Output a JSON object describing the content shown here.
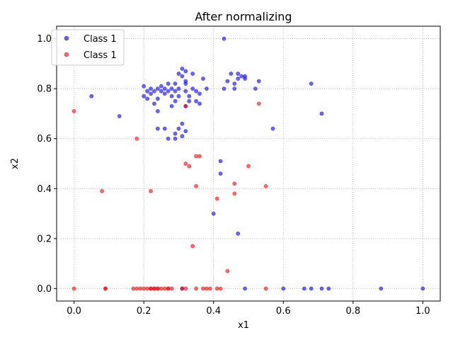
{
  "chart_data": {
    "type": "scatter",
    "title": "After normalizing",
    "xlabel": "x1",
    "ylabel": "x2",
    "xlim": [
      -0.05,
      1.05
    ],
    "ylim": [
      -0.05,
      1.05
    ],
    "xticks": [
      "0.0",
      "0.2",
      "0.4",
      "0.6",
      "0.8",
      "1.0"
    ],
    "yticks": [
      "0.0",
      "0.2",
      "0.4",
      "0.6",
      "0.8",
      "1.0"
    ],
    "grid": true,
    "legend_position": "top-left",
    "series": [
      {
        "name": "Class 1",
        "color": "#0000ff",
        "points": [
          [
            0.05,
            0.77
          ],
          [
            0.13,
            0.69
          ],
          [
            0.2,
            0.77
          ],
          [
            0.2,
            0.81
          ],
          [
            0.21,
            0.79
          ],
          [
            0.21,
            0.76
          ],
          [
            0.22,
            0.8
          ],
          [
            0.22,
            0.78
          ],
          [
            0.23,
            0.74
          ],
          [
            0.23,
            0.79
          ],
          [
            0.24,
            0.8
          ],
          [
            0.24,
            0.76
          ],
          [
            0.25,
            0.81
          ],
          [
            0.25,
            0.79
          ],
          [
            0.26,
            0.8
          ],
          [
            0.26,
            0.78
          ],
          [
            0.27,
            0.82
          ],
          [
            0.27,
            0.79
          ],
          [
            0.28,
            0.8
          ],
          [
            0.28,
            0.77
          ],
          [
            0.28,
            0.73
          ],
          [
            0.29,
            0.82
          ],
          [
            0.29,
            0.79
          ],
          [
            0.29,
            0.75
          ],
          [
            0.3,
            0.8
          ],
          [
            0.3,
            0.77
          ],
          [
            0.3,
            0.86
          ],
          [
            0.31,
            0.88
          ],
          [
            0.31,
            0.85
          ],
          [
            0.32,
            0.87
          ],
          [
            0.32,
            0.83
          ],
          [
            0.32,
            0.79
          ],
          [
            0.33,
            0.77
          ],
          [
            0.33,
            0.75
          ],
          [
            0.34,
            0.86
          ],
          [
            0.34,
            0.8
          ],
          [
            0.35,
            0.79
          ],
          [
            0.35,
            0.75
          ],
          [
            0.36,
            0.78
          ],
          [
            0.36,
            0.74
          ],
          [
            0.37,
            0.84
          ],
          [
            0.38,
            0.8
          ],
          [
            0.24,
            0.71
          ],
          [
            0.24,
            0.64
          ],
          [
            0.26,
            0.64
          ],
          [
            0.27,
            0.6
          ],
          [
            0.29,
            0.6
          ],
          [
            0.29,
            0.62
          ],
          [
            0.3,
            0.64
          ],
          [
            0.31,
            0.66
          ],
          [
            0.32,
            0.63
          ],
          [
            0.31,
            0.61
          ],
          [
            0.32,
            0.82
          ],
          [
            0.32,
            0.73
          ],
          [
            0.42,
            0.51
          ],
          [
            0.42,
            0.46
          ],
          [
            0.4,
            0.3
          ],
          [
            0.47,
            0.22
          ],
          [
            0.43,
            0.8
          ],
          [
            0.44,
            0.83
          ],
          [
            0.45,
            0.86
          ],
          [
            0.46,
            0.82
          ],
          [
            0.46,
            0.8
          ],
          [
            0.47,
            0.84
          ],
          [
            0.47,
            0.86
          ],
          [
            0.48,
            0.85
          ],
          [
            0.49,
            0.84
          ],
          [
            0.49,
            0.85
          ],
          [
            0.52,
            0.8
          ],
          [
            0.53,
            0.83
          ],
          [
            0.57,
            0.64
          ],
          [
            0.68,
            0.82
          ],
          [
            0.71,
            0.7
          ],
          [
            0.43,
            1.0
          ],
          [
            0.31,
            0.0
          ],
          [
            0.49,
            0.0
          ],
          [
            0.6,
            0.0
          ],
          [
            0.66,
            0.0
          ],
          [
            0.68,
            0.0
          ],
          [
            0.71,
            0.0
          ],
          [
            0.73,
            0.0
          ],
          [
            0.88,
            0.0
          ],
          [
            1.0,
            0.0
          ]
        ]
      },
      {
        "name": "Class 1",
        "color": "#ff0000",
        "points": [
          [
            0.0,
            0.71
          ],
          [
            0.08,
            0.39
          ],
          [
            0.18,
            0.6
          ],
          [
            0.22,
            0.39
          ],
          [
            0.32,
            0.73
          ],
          [
            0.32,
            0.5
          ],
          [
            0.33,
            0.49
          ],
          [
            0.35,
            0.53
          ],
          [
            0.35,
            0.41
          ],
          [
            0.36,
            0.53
          ],
          [
            0.34,
            0.17
          ],
          [
            0.41,
            0.36
          ],
          [
            0.44,
            0.07
          ],
          [
            0.46,
            0.38
          ],
          [
            0.46,
            0.42
          ],
          [
            0.5,
            0.49
          ],
          [
            0.53,
            0.74
          ],
          [
            0.55,
            0.41
          ],
          [
            0.0,
            0.0
          ],
          [
            0.09,
            0.0
          ],
          [
            0.09,
            0.0
          ],
          [
            0.17,
            0.0
          ],
          [
            0.18,
            0.0
          ],
          [
            0.19,
            0.0
          ],
          [
            0.2,
            0.0
          ],
          [
            0.21,
            0.0
          ],
          [
            0.22,
            0.0
          ],
          [
            0.22,
            0.0
          ],
          [
            0.23,
            0.0
          ],
          [
            0.23,
            0.0
          ],
          [
            0.24,
            0.0
          ],
          [
            0.24,
            0.0
          ],
          [
            0.25,
            0.0
          ],
          [
            0.26,
            0.0
          ],
          [
            0.27,
            0.0
          ],
          [
            0.27,
            0.0
          ],
          [
            0.28,
            0.0
          ],
          [
            0.31,
            0.0
          ],
          [
            0.32,
            0.0
          ],
          [
            0.35,
            0.0
          ],
          [
            0.37,
            0.0
          ],
          [
            0.38,
            0.0
          ],
          [
            0.39,
            0.0
          ],
          [
            0.41,
            0.0
          ],
          [
            0.42,
            0.0
          ],
          [
            0.55,
            0.0
          ]
        ]
      }
    ]
  }
}
